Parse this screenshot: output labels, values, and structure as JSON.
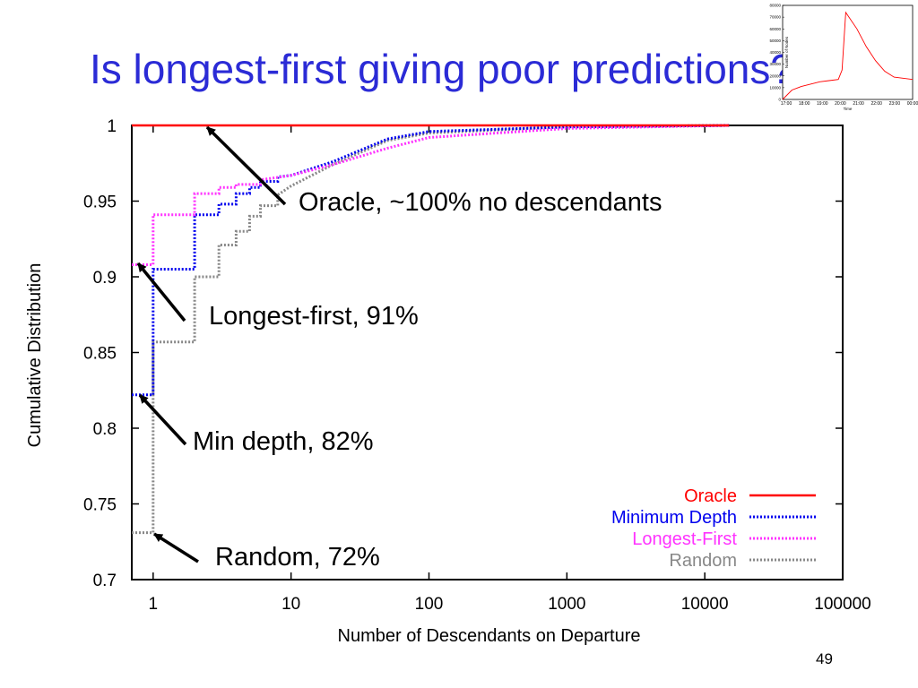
{
  "slide": {
    "title": "Is longest-first giving poor predictions?",
    "page_number": "49"
  },
  "annotations": {
    "oracle": "Oracle, ~100% no descendants",
    "longest_first": "Longest-first, 91%",
    "min_depth": "Min depth, 82%",
    "random": "Random, 72%"
  },
  "chart_data": [
    {
      "type": "line",
      "title": "",
      "xlabel": "Number of Descendants on Departure",
      "ylabel": "Cumulative Distribution",
      "xscale": "log",
      "xlim": [
        0.7,
        100000
      ],
      "ylim": [
        0.7,
        1.0
      ],
      "xticks": [
        1,
        10,
        100,
        1000,
        10000,
        100000
      ],
      "xtick_labels": [
        "1",
        "10",
        "100",
        "1000",
        "10000",
        "100000"
      ],
      "yticks": [
        0.7,
        0.75,
        0.8,
        0.85,
        0.9,
        0.95,
        1.0
      ],
      "ytick_labels": [
        "0.7",
        "0.75",
        "0.8",
        "0.85",
        "0.9",
        "0.95",
        "1"
      ],
      "grid": false,
      "legend_position": "bottom-right",
      "series": [
        {
          "name": "Oracle",
          "color": "#ff0000",
          "style": "solid",
          "x": [
            0.7,
            15000
          ],
          "y": [
            1.0,
            1.0
          ]
        },
        {
          "name": "Minimum Depth",
          "color": "#0000ee",
          "style": "dotted",
          "x": [
            0.7,
            1,
            1,
            2,
            2,
            3,
            3,
            4,
            4,
            5,
            5,
            6,
            6,
            8,
            8,
            10,
            20,
            50,
            100,
            1000,
            15000
          ],
          "y": [
            0.822,
            0.822,
            0.905,
            0.905,
            0.941,
            0.941,
            0.948,
            0.948,
            0.955,
            0.955,
            0.959,
            0.959,
            0.963,
            0.963,
            0.966,
            0.967,
            0.976,
            0.991,
            0.996,
            0.999,
            1.0
          ]
        },
        {
          "name": "Longest-First",
          "color": "#ff33ff",
          "style": "dotted",
          "x": [
            0.7,
            1,
            1,
            2,
            2,
            3,
            3,
            4,
            4,
            6,
            6,
            10,
            20,
            50,
            100,
            1000,
            15000
          ],
          "y": [
            0.908,
            0.908,
            0.941,
            0.941,
            0.955,
            0.955,
            0.959,
            0.959,
            0.961,
            0.961,
            0.964,
            0.967,
            0.974,
            0.985,
            0.992,
            0.998,
            1.0
          ]
        },
        {
          "name": "Random",
          "color": "#888888",
          "style": "dotted",
          "x": [
            0.7,
            1,
            1,
            2,
            2,
            3,
            3,
            4,
            4,
            5,
            5,
            6,
            6,
            8,
            8,
            10,
            20,
            50,
            100,
            1000,
            15000
          ],
          "y": [
            0.731,
            0.731,
            0.857,
            0.857,
            0.9,
            0.9,
            0.921,
            0.921,
            0.93,
            0.93,
            0.94,
            0.94,
            0.947,
            0.947,
            0.954,
            0.96,
            0.974,
            0.99,
            0.995,
            0.999,
            1.0
          ]
        }
      ]
    },
    {
      "type": "line",
      "title": "",
      "xlabel": "Time",
      "ylabel": "Number of Nodes",
      "ylim": [
        0,
        80000
      ],
      "yticks": [
        0,
        10000,
        20000,
        30000,
        40000,
        50000,
        60000,
        70000,
        80000
      ],
      "ytick_labels": [
        "0",
        "10000",
        "20000",
        "30000",
        "40000",
        "50000",
        "60000",
        "70000",
        "80000"
      ],
      "xtick_labels": [
        "17:00",
        "18:00",
        "19:00",
        "20:00",
        "21:00",
        "22:00",
        "23:00",
        "00:00"
      ],
      "series": [
        {
          "color": "#ff0000",
          "x": [
            0,
            0.5,
            1,
            1.5,
            2,
            2.5,
            3,
            3.2,
            3.4,
            4,
            4.5,
            5,
            5.5,
            6,
            7
          ],
          "y": [
            0,
            8000,
            11000,
            13000,
            15000,
            16000,
            17000,
            25000,
            74000,
            60000,
            45000,
            33000,
            24000,
            19000,
            17000
          ]
        }
      ]
    }
  ]
}
